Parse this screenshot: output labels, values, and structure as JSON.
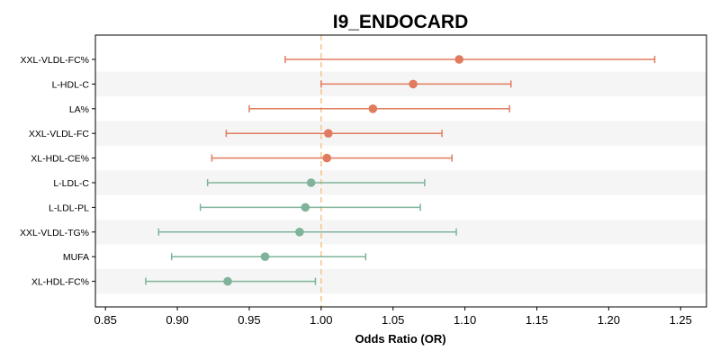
{
  "chart_data": {
    "type": "forest",
    "title": "I9_ENDOCARD",
    "xlabel": "Odds Ratio (OR)",
    "xlim": [
      0.843,
      1.268
    ],
    "xticks": [
      "0.85",
      "0.90",
      "0.95",
      "1.00",
      "1.05",
      "1.10",
      "1.15",
      "1.20",
      "1.25"
    ],
    "reference_line": 1.0,
    "grid": false,
    "categories": [
      "XXL-VLDL-FC%",
      "L-HDL-C",
      "LA%",
      "XXL-VLDL-FC",
      "XL-HDL-CE%",
      "L-LDL-C",
      "L-LDL-PL",
      "XXL-VLDL-TG%",
      "MUFA",
      "XL-HDL-FC%"
    ],
    "or": [
      1.096,
      1.064,
      1.036,
      1.005,
      1.004,
      0.993,
      0.989,
      0.985,
      0.961,
      0.935
    ],
    "ci_low": [
      0.975,
      1.0,
      0.95,
      0.934,
      0.924,
      0.921,
      0.916,
      0.887,
      0.896,
      0.878
    ],
    "ci_high": [
      1.232,
      1.132,
      1.131,
      1.084,
      1.091,
      1.072,
      1.069,
      1.094,
      1.031,
      0.996
    ],
    "colors": {
      "positive": "#e07b5f",
      "negative": "#7fb39a",
      "reference": "#f5c48a",
      "band": "#f5f5f5",
      "axis": "#000000"
    }
  }
}
